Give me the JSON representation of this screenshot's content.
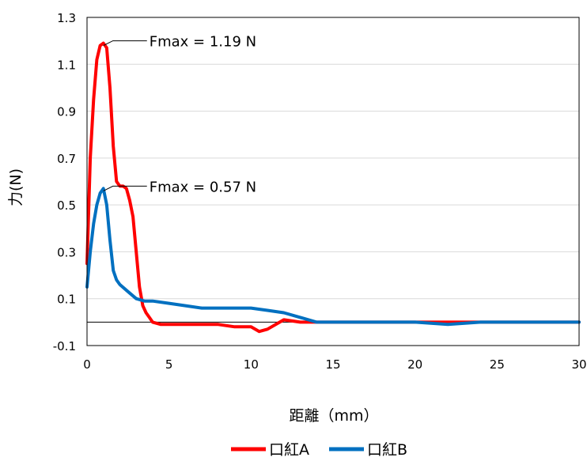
{
  "chart_data": {
    "type": "line",
    "xlabel": "距離（mm）",
    "ylabel": "力(N)",
    "xlim": [
      0,
      30
    ],
    "ylim": [
      -0.1,
      1.3
    ],
    "x_ticks": [
      "0",
      "5",
      "10",
      "15",
      "20",
      "25",
      "30"
    ],
    "y_ticks": [
      "1.3",
      "1.1",
      "0.9",
      "0.7",
      "0.5",
      "0.3",
      "0.1",
      "-0.1"
    ],
    "grid": true,
    "legend_position": "bottom",
    "annotations": [
      {
        "text": "Fmax = 1.19 N",
        "point": [
          1.0,
          1.19
        ]
      },
      {
        "text": "Fmax = 0.57 N",
        "point": [
          1.0,
          0.57
        ]
      }
    ],
    "series": [
      {
        "name": "口紅A",
        "color": "#ff0000",
        "x": [
          0,
          0.2,
          0.4,
          0.6,
          0.8,
          1.0,
          1.2,
          1.4,
          1.6,
          1.8,
          2.0,
          2.2,
          2.4,
          2.6,
          2.8,
          3.0,
          3.2,
          3.4,
          3.6,
          3.8,
          4.0,
          4.5,
          5,
          6,
          7,
          8,
          9,
          10,
          10.5,
          11,
          12,
          13,
          14,
          16,
          18,
          20,
          22,
          24,
          26,
          28,
          30
        ],
        "y": [
          0.25,
          0.7,
          0.95,
          1.12,
          1.18,
          1.19,
          1.17,
          1.0,
          0.75,
          0.6,
          0.58,
          0.58,
          0.57,
          0.52,
          0.45,
          0.3,
          0.15,
          0.07,
          0.04,
          0.02,
          0.0,
          -0.01,
          -0.01,
          -0.01,
          -0.01,
          -0.01,
          -0.02,
          -0.02,
          -0.04,
          -0.03,
          0.01,
          0.0,
          0.0,
          0.0,
          0.0,
          0.0,
          0.0,
          0.0,
          0.0,
          0.0,
          0.0
        ]
      },
      {
        "name": "口紅B",
        "color": "#0070c0",
        "x": [
          0,
          0.2,
          0.4,
          0.6,
          0.8,
          1.0,
          1.2,
          1.4,
          1.6,
          1.8,
          2.0,
          2.5,
          3.0,
          3.5,
          4.0,
          5,
          6,
          7,
          8,
          9,
          10,
          11,
          12,
          13,
          14,
          16,
          18,
          20,
          22,
          24,
          26,
          28,
          30
        ],
        "y": [
          0.15,
          0.3,
          0.42,
          0.5,
          0.55,
          0.57,
          0.5,
          0.35,
          0.22,
          0.18,
          0.16,
          0.13,
          0.1,
          0.09,
          0.09,
          0.08,
          0.07,
          0.06,
          0.06,
          0.06,
          0.06,
          0.05,
          0.04,
          0.02,
          0.0,
          0.0,
          0.0,
          0.0,
          -0.01,
          0.0,
          0.0,
          0.0,
          0.0
        ]
      }
    ]
  }
}
